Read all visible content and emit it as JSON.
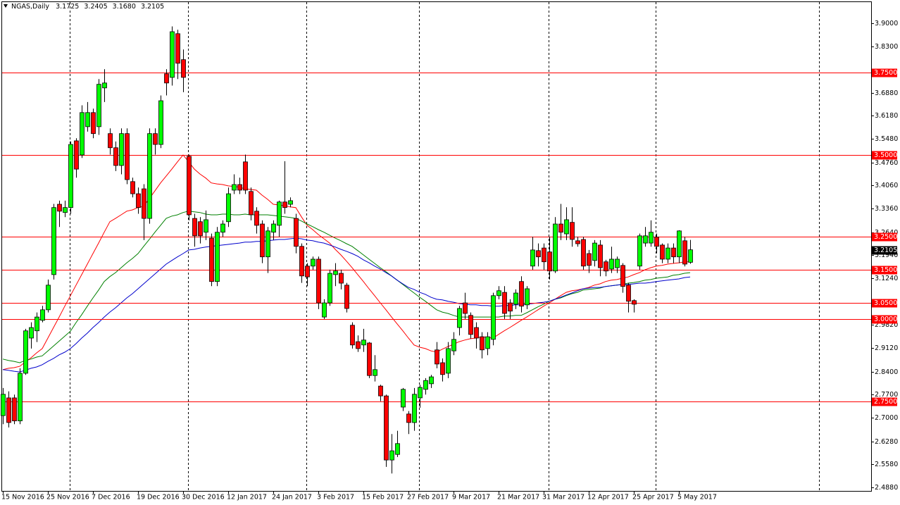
{
  "chart_data": {
    "type": "candlestick",
    "title": "NGAS,Daily",
    "header_values": [
      "3.1725",
      "3.2405",
      "3.1680",
      "3.2105"
    ],
    "up_color": "#00ff00",
    "down_color": "#ff0000",
    "categories": [
      "15 Nov 2016",
      null,
      null,
      null,
      null,
      null,
      null,
      null,
      "25 Nov 2016",
      null,
      null,
      null,
      null,
      null,
      null,
      null,
      "7 Dec 2016",
      null,
      null,
      null,
      null,
      null,
      null,
      null,
      "19 Dec 2016",
      null,
      null,
      null,
      null,
      null,
      null,
      null,
      "30 Dec 2016",
      null,
      null,
      null,
      null,
      null,
      null,
      null,
      "12 Jan 2017",
      null,
      null,
      null,
      null,
      null,
      null,
      null,
      "24 Jan 2017",
      null,
      null,
      null,
      null,
      null,
      null,
      null,
      "3 Feb 2017",
      null,
      null,
      null,
      null,
      null,
      null,
      null,
      "15 Feb 2017",
      null,
      null,
      null,
      null,
      null,
      null,
      null,
      "27 Feb 2017",
      null,
      null,
      null,
      null,
      null,
      null,
      null,
      "9 Mar 2017",
      null,
      null,
      null,
      null,
      null,
      null,
      null,
      "21 Mar 2017",
      null,
      null,
      null,
      null,
      null,
      null,
      null,
      "31 Mar 2017",
      null,
      null,
      null,
      null,
      null,
      null,
      null,
      "12 Apr 2017",
      null,
      null,
      null,
      null,
      null,
      null,
      null,
      "25 Apr 2017",
      null,
      null,
      null,
      null,
      null,
      null,
      null,
      "5 May 2017",
      null,
      null
    ],
    "open": [
      2.706,
      2.76,
      2.76,
      2.69,
      2.835,
      2.942,
      2.964,
      2.996,
      3.028,
      3.135,
      3.349,
      3.324,
      3.339,
      3.542,
      3.499,
      3.585,
      3.628,
      3.585,
      3.703,
      3.564,
      3.521,
      3.467,
      3.564,
      3.418,
      3.381,
      3.396,
      3.306,
      3.564,
      3.531,
      3.746,
      3.735,
      3.868,
      3.789,
      3.495,
      3.306,
      3.296,
      3.264,
      3.246,
      3.114,
      3.264,
      3.296,
      3.392,
      3.409,
      3.478,
      3.388,
      3.328,
      3.289,
      3.189,
      3.264,
      3.285,
      3.356,
      3.349,
      3.306,
      3.221,
      3.161,
      3.161,
      3.182,
      3.006,
      3.049,
      3.135,
      3.139,
      3.103,
      2.981,
      2.931,
      2.921,
      2.927,
      2.828,
      2.796,
      2.766,
      2.571,
      2.588,
      2.732,
      2.711,
      2.685,
      2.76,
      2.786,
      2.803,
      2.906,
      2.867,
      2.835,
      2.903,
      2.974,
      3.049,
      3.011,
      2.974,
      2.946,
      2.91,
      2.938,
      3.071,
      3.081,
      3.049,
      3.045,
      3.114,
      3.043,
      3.161,
      3.208,
      3.216,
      3.204,
      3.146,
      3.289,
      3.259,
      3.294,
      3.238,
      3.242,
      3.199,
      3.178,
      3.225,
      3.174,
      3.152,
      3.156,
      3.163,
      3.103,
      3.056,
      3.161,
      3.231,
      3.231,
      3.249,
      3.225,
      3.182,
      3.216,
      3.189,
      3.238,
      3.1725
    ],
    "high": [
      2.79,
      2.78,
      2.77,
      2.85,
      2.97,
      2.99,
      3.02,
      3.04,
      3.12,
      3.35,
      3.36,
      3.36,
      3.54,
      3.55,
      3.65,
      3.66,
      3.64,
      3.73,
      3.76,
      3.58,
      3.54,
      3.58,
      3.58,
      3.43,
      3.4,
      3.41,
      3.58,
      3.58,
      3.68,
      3.76,
      3.89,
      3.88,
      3.82,
      3.5,
      3.32,
      3.31,
      3.33,
      3.26,
      3.28,
      3.3,
      3.4,
      3.44,
      3.43,
      3.5,
      3.4,
      3.34,
      3.3,
      3.28,
      3.3,
      3.36,
      3.48,
      3.37,
      3.32,
      3.23,
      3.17,
      3.19,
      3.19,
      3.06,
      3.15,
      3.17,
      3.15,
      3.11,
      2.99,
      2.95,
      2.97,
      2.93,
      2.89,
      2.8,
      2.77,
      2.65,
      2.66,
      2.79,
      2.72,
      2.79,
      2.8,
      2.82,
      2.83,
      2.93,
      2.88,
      2.93,
      2.96,
      3.04,
      3.08,
      3.02,
      2.99,
      2.96,
      2.96,
      3.08,
      3.1,
      3.1,
      3.06,
      3.09,
      3.13,
      3.1,
      3.25,
      3.23,
      3.23,
      3.25,
      3.31,
      3.35,
      3.34,
      3.34,
      3.25,
      3.25,
      3.21,
      3.24,
      3.24,
      3.18,
      3.22,
      3.19,
      3.17,
      3.11,
      3.06,
      3.26,
      3.28,
      3.3,
      3.26,
      3.23,
      3.23,
      3.23,
      3.27,
      3.25,
      3.2405
    ],
    "low": [
      2.68,
      2.67,
      2.68,
      2.68,
      2.83,
      2.91,
      2.93,
      2.99,
      3.02,
      3.12,
      3.28,
      3.31,
      3.32,
      3.43,
      3.49,
      3.57,
      3.55,
      3.56,
      3.66,
      3.5,
      3.45,
      3.44,
      3.41,
      3.37,
      3.32,
      3.24,
      3.29,
      3.5,
      3.52,
      3.68,
      3.71,
      3.73,
      3.69,
      3.3,
      3.22,
      3.23,
      3.24,
      3.1,
      3.1,
      3.25,
      3.28,
      3.38,
      3.38,
      3.38,
      3.3,
      3.26,
      3.17,
      3.14,
      3.24,
      3.25,
      3.32,
      3.34,
      3.2,
      3.11,
      3.1,
      3.15,
      3.03,
      3.0,
      3.04,
      3.1,
      3.09,
      3.02,
      2.91,
      2.9,
      2.9,
      2.82,
      2.81,
      2.75,
      2.55,
      2.53,
      2.58,
      2.72,
      2.65,
      2.66,
      2.73,
      2.77,
      2.79,
      2.85,
      2.81,
      2.82,
      2.89,
      2.95,
      3.0,
      2.94,
      2.91,
      2.88,
      2.89,
      2.92,
      3.06,
      3.0,
      3.0,
      3.03,
      3.02,
      3.03,
      3.15,
      3.16,
      3.15,
      3.12,
      3.14,
      3.24,
      3.24,
      3.22,
      3.22,
      3.15,
      3.14,
      3.16,
      3.13,
      3.13,
      3.14,
      3.14,
      3.08,
      3.02,
      3.02,
      3.15,
      3.22,
      3.22,
      3.2,
      3.17,
      3.17,
      3.17,
      3.17,
      3.16,
      3.168
    ],
    "close": [
      2.771,
      2.685,
      2.69,
      2.835,
      2.964,
      2.974,
      3.006,
      3.028,
      3.103,
      3.339,
      3.328,
      3.339,
      3.531,
      3.456,
      3.628,
      3.628,
      3.564,
      3.714,
      3.718,
      3.521,
      3.467,
      3.564,
      3.424,
      3.381,
      3.339,
      3.306,
      3.564,
      3.531,
      3.664,
      3.718,
      3.874,
      3.778,
      3.735,
      3.317,
      3.253,
      3.253,
      3.302,
      3.114,
      3.264,
      3.289,
      3.381,
      3.409,
      3.392,
      3.392,
      3.317,
      3.285,
      3.189,
      3.268,
      3.289,
      3.356,
      3.339,
      3.36,
      3.221,
      3.131,
      3.128,
      3.182,
      3.049,
      3.049,
      3.139,
      3.146,
      3.109,
      3.032,
      2.921,
      2.91,
      2.936,
      2.828,
      2.846,
      2.766,
      2.571,
      2.599,
      2.621,
      2.786,
      2.685,
      2.771,
      2.792,
      2.813,
      2.824,
      2.863,
      2.831,
      2.91,
      2.938,
      3.032,
      3.017,
      2.953,
      2.942,
      2.906,
      2.946,
      3.071,
      3.086,
      3.017,
      3.024,
      3.079,
      3.039,
      3.092,
      3.21,
      3.189,
      3.174,
      3.146,
      3.289,
      3.264,
      3.302,
      3.242,
      3.229,
      3.161,
      3.163,
      3.231,
      3.156,
      3.146,
      3.182,
      3.182,
      3.099,
      3.054,
      3.045,
      3.253,
      3.253,
      3.264,
      3.221,
      3.182,
      3.216,
      3.189,
      3.268,
      3.167,
      3.2105
    ],
    "series": [
      {
        "color": "#ff0000",
        "values": [
          2.846,
          2.85,
          2.852,
          2.856,
          2.869,
          2.882,
          2.897,
          2.91,
          2.942,
          2.974,
          3.006,
          3.039,
          3.071,
          3.103,
          3.135,
          3.167,
          3.199,
          3.231,
          3.264,
          3.296,
          3.306,
          3.317,
          3.328,
          3.332,
          3.339,
          3.343,
          3.366,
          3.39,
          3.414,
          3.435,
          3.456,
          3.478,
          3.499,
          3.478,
          3.456,
          3.441,
          3.429,
          3.414,
          3.411,
          3.409,
          3.405,
          3.403,
          3.401,
          3.396,
          3.394,
          3.392,
          3.377,
          3.364,
          3.349,
          3.347,
          3.345,
          3.341,
          3.339,
          3.311,
          3.285,
          3.272,
          3.257,
          3.244,
          3.231,
          3.212,
          3.195,
          3.176,
          3.156,
          3.135,
          3.114,
          3.092,
          3.071,
          3.049,
          3.028,
          3.006,
          2.985,
          2.964,
          2.942,
          2.921,
          2.914,
          2.91,
          2.903,
          2.899,
          2.908,
          2.916,
          2.923,
          2.931,
          2.936,
          2.94,
          2.942,
          2.946,
          2.944,
          2.942,
          2.953,
          2.964,
          2.974,
          2.985,
          2.996,
          3.006,
          3.017,
          3.028,
          3.039,
          3.049,
          3.06,
          3.071,
          3.081,
          3.086,
          3.088,
          3.092,
          3.096,
          3.103,
          3.107,
          3.114,
          3.118,
          3.12,
          3.124,
          3.128,
          3.135,
          3.141,
          3.15,
          3.156,
          3.161,
          3.163,
          3.167,
          3.169,
          3.171,
          3.174,
          3.174
        ]
      },
      {
        "color": "#008000",
        "values": [
          2.878,
          2.874,
          2.871,
          2.867,
          2.874,
          2.878,
          2.884,
          2.888,
          2.903,
          2.918,
          2.933,
          2.948,
          2.963,
          2.989,
          3.013,
          3.039,
          3.064,
          3.088,
          3.114,
          3.129,
          3.141,
          3.156,
          3.171,
          3.184,
          3.199,
          3.221,
          3.242,
          3.264,
          3.285,
          3.306,
          3.313,
          3.317,
          3.324,
          3.328,
          3.326,
          3.324,
          3.319,
          3.317,
          3.317,
          3.319,
          3.319,
          3.317,
          3.317,
          3.319,
          3.317,
          3.317,
          3.317,
          3.317,
          3.315,
          3.313,
          3.311,
          3.309,
          3.306,
          3.298,
          3.289,
          3.281,
          3.272,
          3.264,
          3.255,
          3.246,
          3.238,
          3.229,
          3.221,
          3.208,
          3.195,
          3.182,
          3.169,
          3.156,
          3.144,
          3.131,
          3.118,
          3.105,
          3.092,
          3.079,
          3.066,
          3.054,
          3.041,
          3.028,
          3.021,
          3.017,
          3.011,
          3.006,
          3.006,
          3.006,
          3.006,
          3.006,
          3.006,
          3.006,
          3.006,
          3.009,
          3.009,
          3.011,
          3.011,
          3.019,
          3.028,
          3.037,
          3.045,
          3.054,
          3.06,
          3.064,
          3.071,
          3.077,
          3.081,
          3.088,
          3.09,
          3.092,
          3.094,
          3.099,
          3.101,
          3.103,
          3.105,
          3.109,
          3.111,
          3.114,
          3.118,
          3.12,
          3.124,
          3.126,
          3.128,
          3.133,
          3.135,
          3.139,
          3.141
        ]
      },
      {
        "color": "#0000cc",
        "values": [
          2.846,
          2.844,
          2.841,
          2.839,
          2.844,
          2.85,
          2.854,
          2.861,
          2.871,
          2.88,
          2.891,
          2.899,
          2.91,
          2.925,
          2.942,
          2.957,
          2.974,
          2.989,
          3.006,
          3.021,
          3.034,
          3.049,
          3.064,
          3.077,
          3.092,
          3.107,
          3.122,
          3.137,
          3.152,
          3.167,
          3.178,
          3.189,
          3.199,
          3.21,
          3.212,
          3.216,
          3.219,
          3.221,
          3.223,
          3.225,
          3.227,
          3.229,
          3.231,
          3.234,
          3.234,
          3.236,
          3.236,
          3.238,
          3.24,
          3.242,
          3.242,
          3.244,
          3.246,
          3.244,
          3.24,
          3.238,
          3.234,
          3.231,
          3.225,
          3.219,
          3.212,
          3.206,
          3.199,
          3.191,
          3.18,
          3.171,
          3.161,
          3.152,
          3.141,
          3.131,
          3.118,
          3.107,
          3.096,
          3.09,
          3.081,
          3.075,
          3.066,
          3.06,
          3.058,
          3.054,
          3.051,
          3.047,
          3.045,
          3.043,
          3.043,
          3.041,
          3.041,
          3.039,
          3.039,
          3.041,
          3.041,
          3.043,
          3.043,
          3.045,
          3.047,
          3.049,
          3.051,
          3.054,
          3.06,
          3.066,
          3.073,
          3.079,
          3.086,
          3.092,
          3.094,
          3.096,
          3.096,
          3.099,
          3.101,
          3.103,
          3.105,
          3.105,
          3.107,
          3.109,
          3.109,
          3.111,
          3.114,
          3.116,
          3.118,
          3.12,
          3.122,
          3.126,
          3.128
        ]
      }
    ],
    "levels_color": "#ff0000",
    "levels": [
      {
        "value": 3.75,
        "label": "3.7500"
      },
      {
        "value": 3.5,
        "label": "3.5000"
      },
      {
        "value": 3.25,
        "label": "3.2500"
      },
      {
        "value": 3.15,
        "label": "3.1500"
      },
      {
        "value": 3.05,
        "label": "3.0500"
      },
      {
        "value": 3.0,
        "label": "3.0000"
      },
      {
        "value": 2.75,
        "label": "2.7500"
      }
    ],
    "ylim": [
      2.477,
      3.964
    ],
    "yticks": [
      {
        "value": 3.9,
        "label": "3.9000"
      },
      {
        "value": 3.83,
        "label": "3.8300"
      },
      {
        "value": 3.688,
        "label": "3.6880"
      },
      {
        "value": 3.618,
        "label": "3.6180"
      },
      {
        "value": 3.548,
        "label": "3.5480"
      },
      {
        "value": 3.476,
        "label": "3.4760"
      },
      {
        "value": 3.406,
        "label": "3.4060"
      },
      {
        "value": 3.336,
        "label": "3.3360"
      },
      {
        "value": 3.264,
        "label": "3.2640"
      },
      {
        "value": 3.194,
        "label": "3.1940"
      },
      {
        "value": 3.124,
        "label": "3.1240"
      },
      {
        "value": 2.982,
        "label": "2.9820"
      },
      {
        "value": 2.912,
        "label": "2.9120"
      },
      {
        "value": 2.84,
        "label": "2.8400"
      },
      {
        "value": 2.77,
        "label": "2.7700"
      },
      {
        "value": 2.7,
        "label": "2.7000"
      },
      {
        "value": 2.628,
        "label": "2.6280"
      },
      {
        "value": 2.558,
        "label": "2.5580"
      },
      {
        "value": 2.488,
        "label": "2.4880"
      }
    ]
  }
}
